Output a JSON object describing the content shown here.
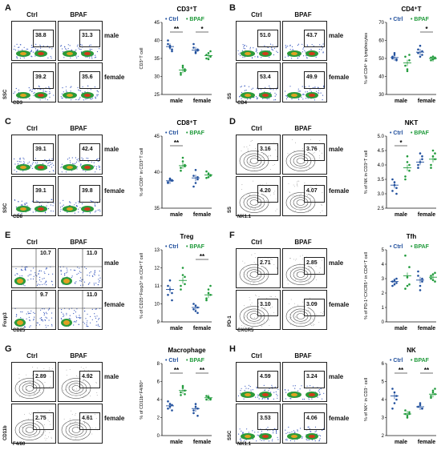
{
  "colors": {
    "ctrl": "#1f4e9c",
    "bpaf": "#1f9a3a"
  },
  "panels": [
    {
      "letter": "A",
      "cols": [
        "Ctrl",
        "BPAF"
      ],
      "rows": [
        "male",
        "female"
      ],
      "xaxis": "CD3",
      "yaxis": "SSC",
      "vals": [
        "38.8",
        "31.3",
        "39.2",
        "35.6"
      ],
      "plot": "dot"
    },
    {
      "letter": "B",
      "cols": [
        "Ctrl",
        "BPAF"
      ],
      "rows": [
        "male",
        "female"
      ],
      "xaxis": "CD4",
      "yaxis": "SS",
      "vals": [
        "51.0",
        "43.7",
        "53.4",
        "49.9"
      ],
      "plot": "dot"
    },
    {
      "letter": "C",
      "cols": [
        "Ctrl",
        "BPAF"
      ],
      "rows": [
        "male",
        "female"
      ],
      "xaxis": "CD8",
      "yaxis": "SSC",
      "vals": [
        "39.1",
        "42.4",
        "39.1",
        "39.8"
      ],
      "plot": "dot"
    },
    {
      "letter": "D",
      "cols": [
        "Ctrl",
        "BPAF"
      ],
      "rows": [
        "male",
        "female"
      ],
      "xaxis": "NK1.1",
      "yaxis": "SS",
      "vals": [
        "3.16",
        "3.76",
        "4.20",
        "4.07"
      ],
      "plot": "contour"
    },
    {
      "letter": "E",
      "cols": [
        "Ctrl",
        "BPAF"
      ],
      "rows": [
        "male",
        "female"
      ],
      "xaxis": "CD25",
      "yaxis": "Foxp3",
      "vals": [
        "10.7",
        "11.0",
        "9.7",
        "11.0"
      ],
      "plot": "quad"
    },
    {
      "letter": "F",
      "cols": [
        "Ctrl",
        "BPAF"
      ],
      "rows": [
        "male",
        "female"
      ],
      "xaxis": "CXCR5",
      "yaxis": "PD-1",
      "vals": [
        "2.71",
        "2.85",
        "3.10",
        "3.09"
      ],
      "plot": "contour"
    },
    {
      "letter": "G",
      "cols": [
        "Ctrl",
        "BPAF"
      ],
      "rows": [
        "male",
        "female"
      ],
      "xaxis": "F4/80",
      "yaxis": "CD11b",
      "vals": [
        "2.89",
        "4.92",
        "2.75",
        "4.61"
      ],
      "plot": "contour"
    },
    {
      "letter": "H",
      "cols": [
        "Ctrl",
        "BPAF"
      ],
      "rows": [
        "male",
        "female"
      ],
      "xaxis": "NK1.1",
      "yaxis": "SSC",
      "vals": [
        "4.59",
        "3.24",
        "3.53",
        "4.06"
      ],
      "plot": "dot"
    }
  ],
  "chart_data": [
    {
      "type": "scatter",
      "title": "CD3⁺T",
      "ylabel": "CD3⁺T cell",
      "ylim": [
        25,
        45
      ],
      "yticks": [
        "25",
        "30",
        "35",
        "40",
        "45"
      ],
      "categories": [
        "male",
        "female"
      ],
      "legend": [
        "Ctrl",
        "BPAF"
      ],
      "sig": [
        "**",
        "*"
      ],
      "series": [
        {
          "name": "Ctrl",
          "means": [
            38.3,
            37.3
          ],
          "points": [
            [
              39,
              38,
              37.5,
              40,
              38.5,
              37
            ],
            [
              38,
              36.5,
              37.5,
              39,
              36.8,
              37.2
            ]
          ]
        },
        {
          "name": "BPAF",
          "means": [
            31.8,
            35.8
          ],
          "points": [
            [
              31,
              33,
              32,
              30.5,
              32.5,
              31.5
            ],
            [
              35,
              36.5,
              35.5,
              36,
              34.8,
              37
            ]
          ]
        }
      ]
    },
    {
      "type": "scatter",
      "title": "CD4⁺T",
      "ylabel": "% of CD4⁺ in lymphocytes",
      "ylim": [
        30,
        70
      ],
      "yticks": [
        "30",
        "40",
        "50",
        "60",
        "70"
      ],
      "categories": [
        "male",
        "female"
      ],
      "legend": [
        "Ctrl",
        "BPAF"
      ],
      "sig": [
        "",
        "*"
      ],
      "series": [
        {
          "name": "Ctrl",
          "means": [
            50.5,
            53.5
          ],
          "points": [
            [
              50,
              52,
              49,
              51,
              53,
              49.5
            ],
            [
              53,
              57,
              52,
              55,
              51,
              54
            ]
          ]
        },
        {
          "name": "BPAF",
          "means": [
            47.5,
            50
          ],
          "points": [
            [
              46,
              43,
              49,
              51,
              44,
              52
            ],
            [
              49,
              51,
              50,
              50.5,
              49.5,
              50.5
            ]
          ]
        }
      ]
    },
    {
      "type": "scatter",
      "title": "CD8⁺T",
      "ylabel": "% of CD8⁺ in CD3⁺T cell",
      "ylim": [
        35,
        45
      ],
      "yticks": [
        "35",
        "40",
        "45"
      ],
      "categories": [
        "male",
        "female"
      ],
      "legend": [
        "Ctrl",
        "BPAF"
      ],
      "sig": [
        "**",
        ""
      ],
      "series": [
        {
          "name": "Ctrl",
          "means": [
            38.8,
            39.2
          ],
          "points": [
            [
              38.5,
              39,
              38.8,
              38.6,
              39.1,
              38.9
            ],
            [
              38,
              40.3,
              39,
              39.5,
              38.5,
              39.3
            ]
          ]
        },
        {
          "name": "BPAF",
          "means": [
            40.9,
            39.6
          ],
          "points": [
            [
              40.2,
              41.5,
              41,
              40.6,
              42,
              40.8
            ],
            [
              39.2,
              39.8,
              39.6,
              40.1,
              39.3,
              39.5
            ]
          ]
        }
      ]
    },
    {
      "type": "scatter",
      "title": "NKT",
      "ylabel": "% of NK in CD3⁺T cell",
      "ylim": [
        2.5,
        5.0
      ],
      "yticks": [
        "2.5",
        "3.0",
        "3.5",
        "4.0",
        "4.5",
        "5.0"
      ],
      "categories": [
        "male",
        "female"
      ],
      "legend": [
        "Ctrl",
        "BPAF"
      ],
      "sig": [
        "*",
        ""
      ],
      "series": [
        {
          "name": "Ctrl",
          "means": [
            3.3,
            4.1
          ],
          "points": [
            [
              3.1,
              3.4,
              3.2,
              3.5,
              3.3,
              3.0
            ],
            [
              4.0,
              4.4,
              4.2,
              3.9,
              4.1,
              4.3
            ]
          ]
        },
        {
          "name": "BPAF",
          "means": [
            3.9,
            4.2
          ],
          "points": [
            [
              3.6,
              4.3,
              4.0,
              3.5,
              4.1,
              3.8
            ],
            [
              4.0,
              4.5,
              4.2,
              3.9,
              4.3,
              4.4
            ]
          ]
        }
      ]
    },
    {
      "type": "scatter",
      "title": "Treg",
      "ylabel": "% of CD25⁺Foxp3⁺ in CD4⁺T cell",
      "ylim": [
        9,
        13
      ],
      "yticks": [
        "9",
        "10",
        "11",
        "12",
        "13"
      ],
      "categories": [
        "male",
        "female"
      ],
      "legend": [
        "Ctrl",
        "BPAF"
      ],
      "sig": [
        "",
        "**"
      ],
      "series": [
        {
          "name": "Ctrl",
          "means": [
            10.8,
            9.8
          ],
          "points": [
            [
              10.5,
              11.3,
              10.2,
              11,
              10.8,
              10.6
            ],
            [
              9.7,
              9.9,
              9.5,
              10,
              9.6,
              9.8
            ]
          ]
        },
        {
          "name": "BPAF",
          "means": [
            11.3,
            10.5
          ],
          "points": [
            [
              11,
              12,
              11.5,
              10.8,
              11.6,
              11.1
            ],
            [
              10.3,
              10.8,
              10.5,
              10.2,
              10.6,
              11
            ]
          ]
        }
      ]
    },
    {
      "type": "scatter",
      "title": "Tfh",
      "ylabel": "% of PD-1⁺CXCR5⁺ in CD4⁺T cell",
      "ylim": [
        0,
        5
      ],
      "yticks": [
        "0",
        "1",
        "2",
        "3",
        "4",
        "5"
      ],
      "categories": [
        "male",
        "female"
      ],
      "legend": [
        "Ctrl",
        "BPAF"
      ],
      "sig": [
        "",
        ""
      ],
      "series": [
        {
          "name": "Ctrl",
          "means": [
            2.8,
            2.9
          ],
          "points": [
            [
              2.8,
              2.6,
              3.0,
              2.5,
              2.9,
              2.7
            ],
            [
              3.2,
              2.5,
              2.8,
              3.5,
              2.2,
              3.0
            ]
          ]
        },
        {
          "name": "BPAF",
          "means": [
            3.2,
            3.1
          ],
          "points": [
            [
              4.6,
              2.5,
              3.8,
              2.3,
              3.1,
              2.6
            ],
            [
              3.2,
              2.9,
              3.4,
              3.0,
              3.3,
              2.8
            ]
          ]
        }
      ]
    },
    {
      "type": "scatter",
      "title": "Macrophage",
      "ylabel": "% of CD11b⁺F4/80⁺",
      "ylim": [
        0,
        8
      ],
      "yticks": [
        "0",
        "2",
        "4",
        "6",
        "8"
      ],
      "categories": [
        "male",
        "female"
      ],
      "legend": [
        "Ctrl",
        "BPAF"
      ],
      "sig": [
        "**",
        "**"
      ],
      "series": [
        {
          "name": "Ctrl",
          "means": [
            3.3,
            3.0
          ],
          "points": [
            [
              3.0,
              3.5,
              2.8,
              3.8,
              3.2,
              3.4
            ],
            [
              2.5,
              3.2,
              3.0,
              2.8,
              3.5,
              2.2
            ]
          ]
        },
        {
          "name": "BPAF",
          "means": [
            5.0,
            4.2
          ],
          "points": [
            [
              4.5,
              5.5,
              5.0,
              4.8,
              5.3,
              4.6
            ],
            [
              4.0,
              4.3,
              4.1,
              4.4,
              4.2,
              4.0
            ]
          ]
        }
      ]
    },
    {
      "type": "scatter",
      "title": "NK",
      "ylabel": "% of NK⁺ in CD3⁻ cell",
      "ylim": [
        2,
        6
      ],
      "yticks": [
        "2",
        "3",
        "4",
        "5",
        "6"
      ],
      "categories": [
        "male",
        "female"
      ],
      "legend": [
        "Ctrl",
        "BPAF"
      ],
      "sig": [
        "**",
        "**"
      ],
      "series": [
        {
          "name": "Ctrl",
          "means": [
            4.2,
            3.6
          ],
          "points": [
            [
              4.6,
              3.8,
              4.2,
              3.5,
              4.4,
              4.0
            ],
            [
              3.6,
              3.7,
              3.5,
              3.6,
              3.8,
              3.5
            ]
          ]
        },
        {
          "name": "BPAF",
          "means": [
            3.2,
            4.3
          ],
          "points": [
            [
              3.2,
              3.0,
              3.3,
              3.4,
              3.1,
              3.2
            ],
            [
              4.1,
              4.5,
              4.3,
              4.2,
              4.4,
              4.6
            ]
          ]
        }
      ]
    }
  ]
}
